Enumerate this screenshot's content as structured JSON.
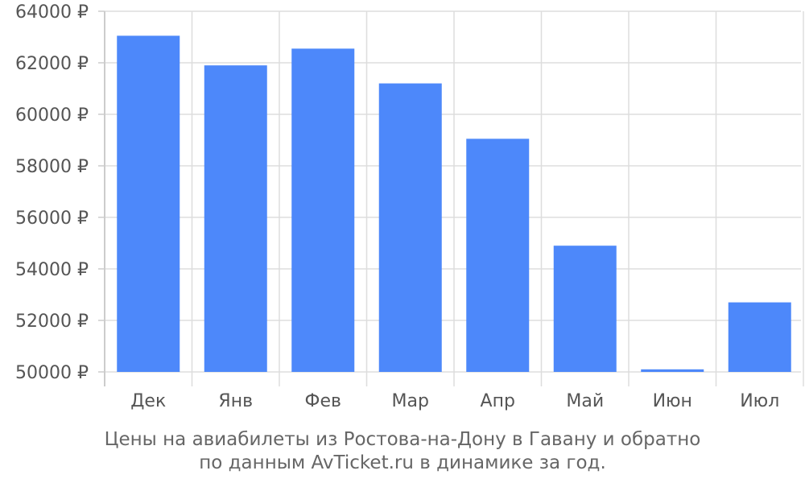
{
  "chart_data": {
    "type": "bar",
    "categories": [
      "Дек",
      "Янв",
      "Фев",
      "Мар",
      "Апр",
      "Май",
      "Июн",
      "Июл"
    ],
    "values": [
      63050,
      61900,
      62550,
      61200,
      59050,
      54900,
      50100,
      52700
    ],
    "ylim": [
      50000,
      64000
    ],
    "yticks": [
      50000,
      52000,
      54000,
      56000,
      58000,
      60000,
      62000,
      64000
    ],
    "ytick_labels": [
      "50000 ₽",
      "52000 ₽",
      "54000 ₽",
      "56000 ₽",
      "58000 ₽",
      "60000 ₽",
      "62000 ₽",
      "64000 ₽"
    ],
    "bar_color": "#4d88fa",
    "grid": true,
    "title": "Цены на авиабилеты из Ростова-на-Дону в Гавану и обратно",
    "subtitle": "по данным AvTicket.ru в динамике за год."
  }
}
